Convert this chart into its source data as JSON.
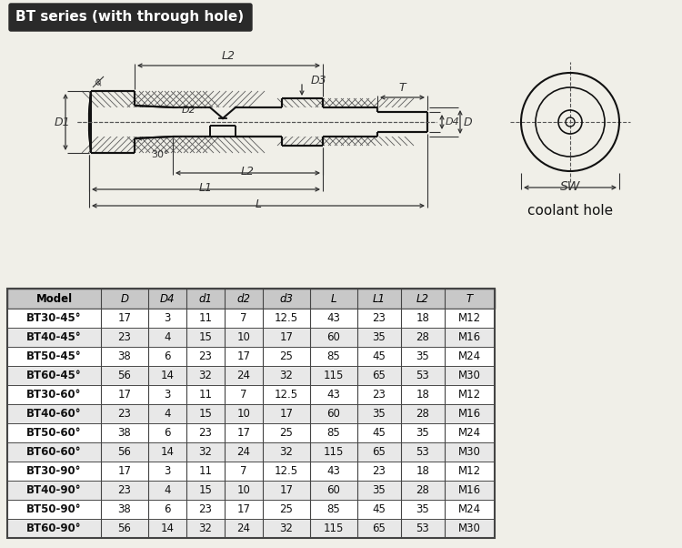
{
  "title": "BT series (with through hole)",
  "title_bg": "#2a2a2a",
  "title_color": "#ffffff",
  "bg_color": "#f0efe8",
  "table_header": [
    "Model",
    "D",
    "D4",
    "d1",
    "d2",
    "d3",
    "L",
    "L1",
    "L2",
    "T"
  ],
  "table_rows": [
    [
      "BT30-45°",
      "17",
      "3",
      "11",
      "7",
      "12.5",
      "43",
      "23",
      "18",
      "M12"
    ],
    [
      "BT40-45°",
      "23",
      "4",
      "15",
      "10",
      "17",
      "60",
      "35",
      "28",
      "M16"
    ],
    [
      "BT50-45°",
      "38",
      "6",
      "23",
      "17",
      "25",
      "85",
      "45",
      "35",
      "M24"
    ],
    [
      "BT60-45°",
      "56",
      "14",
      "32",
      "24",
      "32",
      "115",
      "65",
      "53",
      "M30"
    ],
    [
      "BT30-60°",
      "17",
      "3",
      "11",
      "7",
      "12.5",
      "43",
      "23",
      "18",
      "M12"
    ],
    [
      "BT40-60°",
      "23",
      "4",
      "15",
      "10",
      "17",
      "60",
      "35",
      "28",
      "M16"
    ],
    [
      "BT50-60°",
      "38",
      "6",
      "23",
      "17",
      "25",
      "85",
      "45",
      "35",
      "M24"
    ],
    [
      "BT60-60°",
      "56",
      "14",
      "32",
      "24",
      "32",
      "115",
      "65",
      "53",
      "M30"
    ],
    [
      "BT30-90°",
      "17",
      "3",
      "11",
      "7",
      "12.5",
      "43",
      "23",
      "18",
      "M12"
    ],
    [
      "BT40-90°",
      "23",
      "4",
      "15",
      "10",
      "17",
      "60",
      "35",
      "28",
      "M16"
    ],
    [
      "BT50-90°",
      "38",
      "6",
      "23",
      "17",
      "25",
      "85",
      "45",
      "35",
      "M24"
    ],
    [
      "BT60-90°",
      "56",
      "14",
      "32",
      "24",
      "32",
      "115",
      "65",
      "53",
      "M30"
    ]
  ],
  "header_bg": "#c8c8c8",
  "row_bg_light": "#ffffff",
  "row_bg_dark": "#e8e8e8",
  "border_color": "#444444",
  "text_color": "#111111",
  "dim_color": "#333333",
  "line_color": "#111111",
  "hatch_color": "#555555",
  "coolant_label": "coolant hole"
}
